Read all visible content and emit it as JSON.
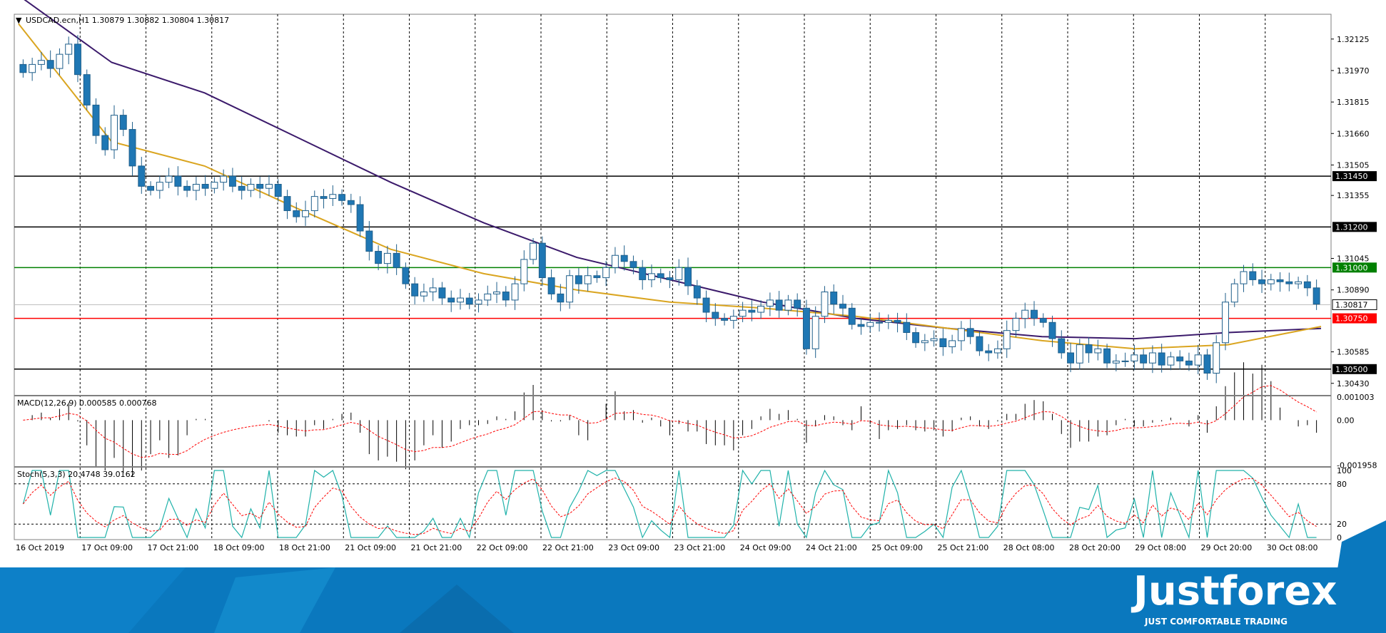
{
  "chart_data": [
    {
      "type": "candlestick",
      "title": "USDCAD.ecn,H1  1.30879 1.30882 1.30804 1.30817",
      "symbol": "USDCAD.ecn",
      "timeframe": "H1",
      "ohlc_header": {
        "open": 1.30879,
        "high": 1.30882,
        "low": 1.30804,
        "close": 1.30817
      },
      "ylim": [
        1.3038,
        1.3224
      ],
      "y_ticks": [
        "1.32125",
        "1.31970",
        "1.31815",
        "1.31660",
        "1.31505",
        "1.31355",
        "1.31045",
        "1.30890",
        "1.30585",
        "1.30430"
      ],
      "x_ticks": [
        "16 Oct 2019",
        "17 Oct 09:00",
        "17 Oct 21:00",
        "18 Oct 09:00",
        "18 Oct 21:00",
        "21 Oct 09:00",
        "21 Oct 21:00",
        "22 Oct 09:00",
        "22 Oct 21:00",
        "23 Oct 09:00",
        "23 Oct 21:00",
        "24 Oct 09:00",
        "24 Oct 21:00",
        "25 Oct 09:00",
        "25 Oct 21:00",
        "28 Oct 08:00",
        "28 Oct 20:00",
        "29 Oct 08:00",
        "29 Oct 20:00",
        "30 Oct 08:00"
      ],
      "levels": [
        {
          "value": 1.3145,
          "label": "1.31450",
          "color": "#000000"
        },
        {
          "value": 1.312,
          "label": "1.31200",
          "color": "#000000"
        },
        {
          "value": 1.31,
          "label": "1.31000",
          "color": "#008000"
        },
        {
          "value": 1.3075,
          "label": "1.30750",
          "color": "#ff0000"
        },
        {
          "value": 1.305,
          "label": "1.30500",
          "color": "#000000"
        }
      ],
      "current_price": {
        "value": 1.30817,
        "label": "1.30817"
      },
      "close_series": [
        1.3196,
        1.32,
        1.3202,
        1.3198,
        1.3205,
        1.321,
        1.3195,
        1.318,
        1.3165,
        1.3158,
        1.3175,
        1.3168,
        1.315,
        1.314,
        1.3138,
        1.3142,
        1.3145,
        1.314,
        1.3138,
        1.3141,
        1.3139,
        1.3142,
        1.3145,
        1.314,
        1.3138,
        1.3141,
        1.3139,
        1.3141,
        1.3135,
        1.3128,
        1.3125,
        1.3128,
        1.3135,
        1.3134,
        1.3136,
        1.3133,
        1.3131,
        1.3118,
        1.3108,
        1.3102,
        1.3107,
        1.31,
        1.3092,
        1.3086,
        1.3088,
        1.309,
        1.3085,
        1.3083,
        1.3085,
        1.3082,
        1.3084,
        1.3087,
        1.3088,
        1.3084,
        1.3092,
        1.3104,
        1.3112,
        1.3095,
        1.3087,
        1.3083,
        1.3096,
        1.3092,
        1.3096,
        1.3095,
        1.31,
        1.3106,
        1.3103,
        1.31,
        1.3094,
        1.3097,
        1.3095,
        1.3094,
        1.31,
        1.3091,
        1.3085,
        1.3078,
        1.3075,
        1.3074,
        1.3076,
        1.3079,
        1.3078,
        1.3081,
        1.3084,
        1.3079,
        1.3084,
        1.308,
        1.306,
        1.3076,
        1.3088,
        1.3082,
        1.308,
        1.3072,
        1.3071,
        1.3073,
        1.3073,
        1.3074,
        1.3073,
        1.3068,
        1.3063,
        1.3064,
        1.3065,
        1.3061,
        1.3064,
        1.307,
        1.3066,
        1.3059,
        1.3058,
        1.306,
        1.3069,
        1.3075,
        1.3079,
        1.3075,
        1.3073,
        1.3065,
        1.3058,
        1.3053,
        1.3062,
        1.3058,
        1.306,
        1.3053,
        1.3054,
        1.3054,
        1.3057,
        1.3053,
        1.3058,
        1.3052,
        1.3056,
        1.3054,
        1.3052,
        1.3057,
        1.3048,
        1.3063,
        1.3083,
        1.3092,
        1.3098,
        1.3094,
        1.3092,
        1.3094,
        1.3093,
        1.3092,
        1.3093,
        1.309,
        1.3082
      ],
      "ema_fast": [
        1.322,
        1.3162,
        1.315,
        1.3129,
        1.3109,
        1.3097,
        1.3089,
        1.3083,
        1.308,
        1.3076,
        1.307,
        1.3064,
        1.306,
        1.3062,
        1.3071
      ],
      "ema_slow": [
        1.3234,
        1.3201,
        1.3186,
        1.3164,
        1.3142,
        1.3122,
        1.3105,
        1.3094,
        1.3083,
        1.3075,
        1.307,
        1.3066,
        1.3065,
        1.3068,
        1.307
      ],
      "ema_fast_color": "#daa520",
      "ema_slow_color": "#3b1a6b",
      "up_color": "#ffffff",
      "down_color": "#1f77b4",
      "grid": true
    },
    {
      "type": "histogram",
      "title": "MACD(12,26,9) 0.000585 0.000768",
      "macd": 0.000585,
      "signal": 0.000768,
      "ylim": [
        -0.00195,
        0.00101
      ],
      "y_ticks": [
        "0.001003",
        "0.00",
        "-0.001958"
      ],
      "signal_color": "#ff0000"
    },
    {
      "type": "line",
      "title": "Stoch(5,3,3) 20.4748 39.0162",
      "main": 20.4748,
      "signal": 39.0162,
      "ylim": [
        0,
        100
      ],
      "y_ticks": [
        "100",
        "80",
        "20",
        "0"
      ],
      "levels": [
        80,
        20
      ],
      "main_color": "#20b2aa",
      "signal_color": "#ff0000"
    }
  ],
  "brand": {
    "name": "Justforex",
    "tagline": "JUST COMFORTABLE TRADING",
    "background": "#0a78be"
  }
}
